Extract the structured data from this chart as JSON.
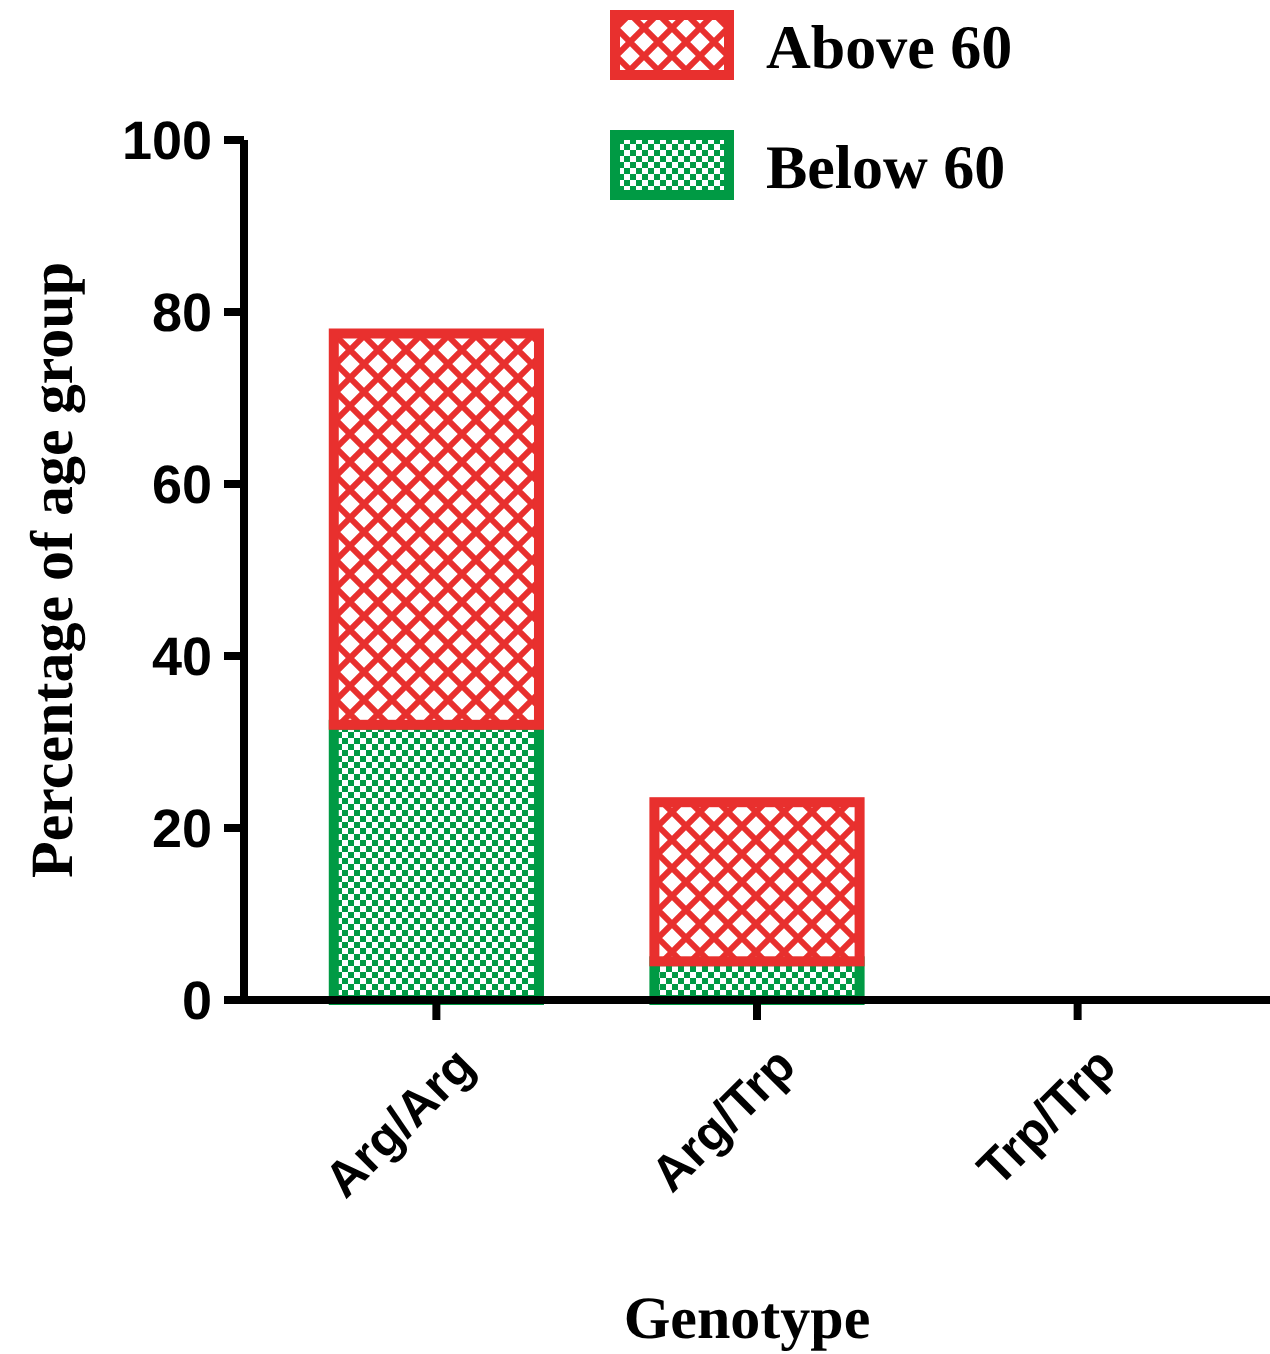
{
  "chart_data": {
    "type": "bar",
    "stacked": true,
    "xlabel": "Genotype",
    "ylabel": "Percentage of age group",
    "categories": [
      "Arg/Arg",
      "Arg/Trp",
      "Trp/Trp"
    ],
    "series": [
      {
        "name": "Below 60",
        "color": "#009a44",
        "values": [
          32,
          4.5,
          0
        ]
      },
      {
        "name": "Above 60",
        "color": "#e8302e",
        "values": [
          45.5,
          18.5,
          0
        ]
      }
    ],
    "ylim": [
      0,
      100
    ],
    "yticks": [
      0,
      20,
      40,
      60,
      80,
      100
    ],
    "legend": "top right",
    "grid": false
  }
}
